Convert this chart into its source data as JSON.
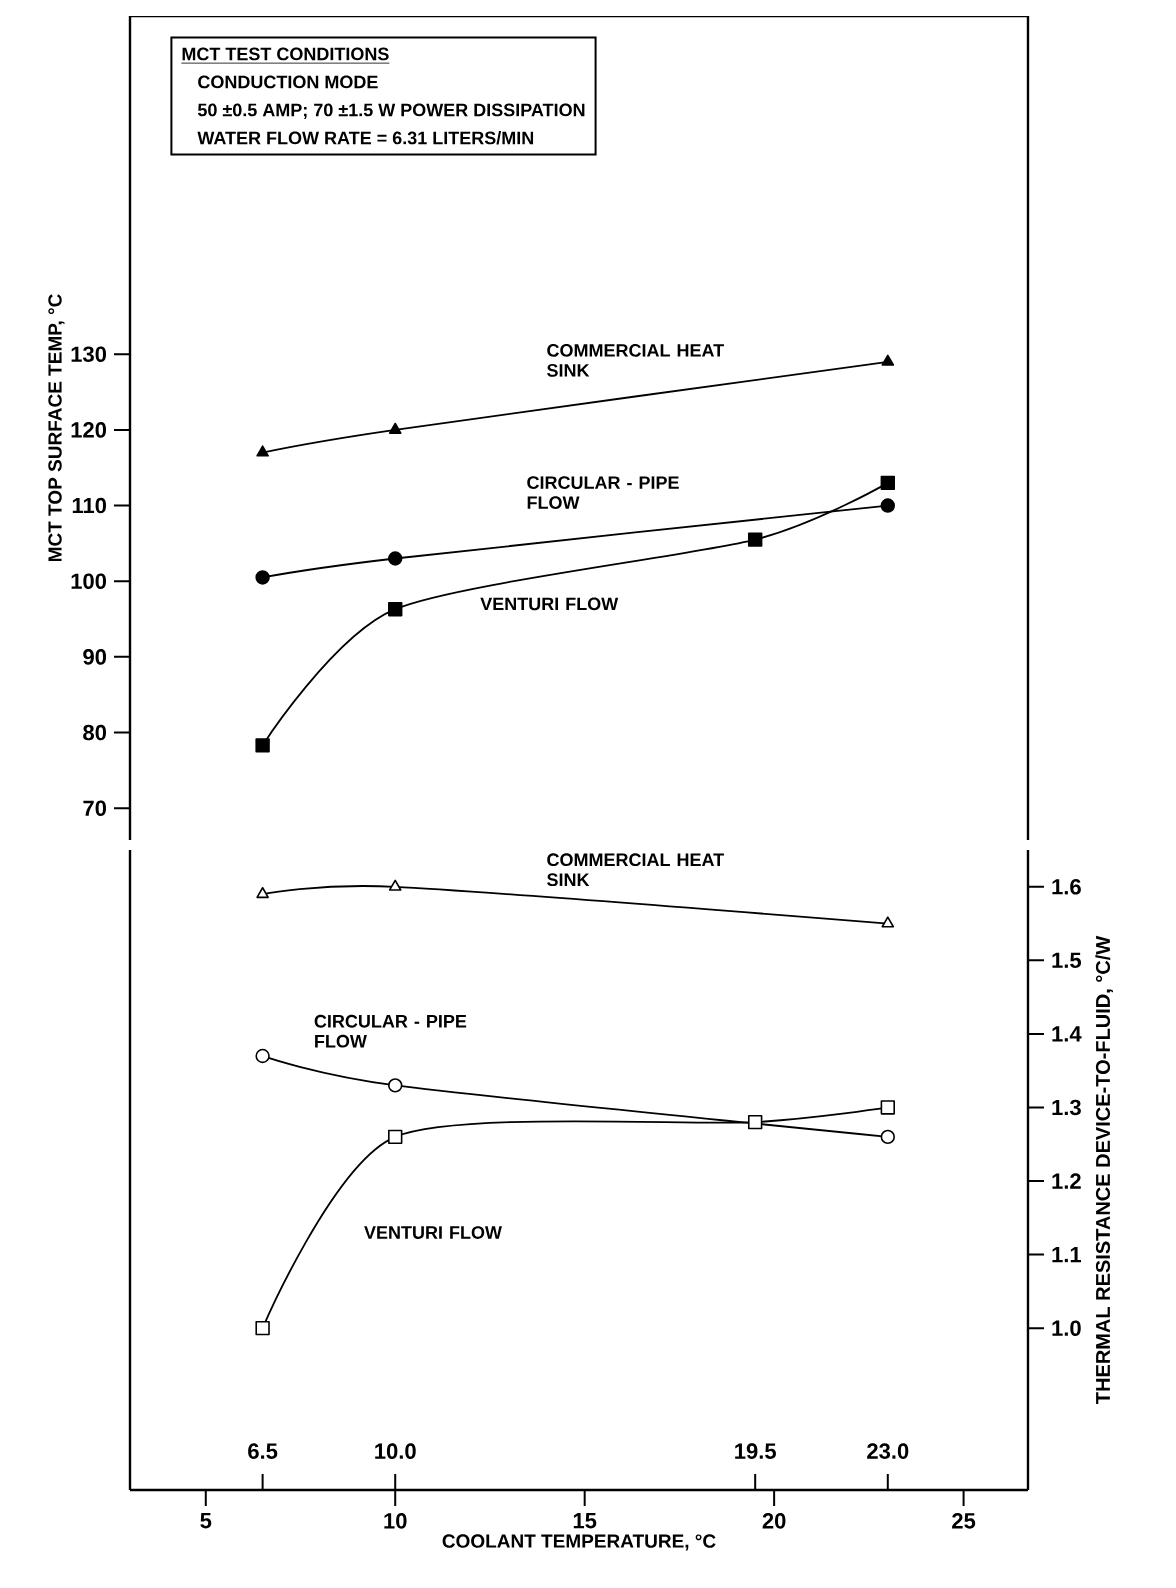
{
  "chart_data": [
    {
      "type": "line",
      "ylabel": "MCT TOP SURFACE TEMP, °C",
      "annotations": [
        "MCT TEST CONDITIONS",
        "CONDUCTION MODE",
        "50 ±0.5 AMP;  70 ±1.5 W POWER DISSIPATION",
        "WATER FLOW RATE = 6.31 LITERS/MIN"
      ],
      "xlim": [
        3,
        26.7
      ],
      "ylim": [
        65.8,
        174.7
      ],
      "yticks": [
        70,
        80,
        90,
        100,
        110,
        120,
        130
      ],
      "tick_labels": "y",
      "grid": false,
      "line_style": "solid",
      "series": [
        {
          "name": "COMMERCIAL HEAT SINK",
          "color": "#000000",
          "marker": "triangle",
          "x": [
            6.5,
            10,
            23
          ],
          "values": [
            117,
            120,
            129
          ]
        },
        {
          "name": "CIRCULAR - PIPE FLOW",
          "color": "#000000",
          "marker": "circle",
          "x": [
            6.5,
            10,
            23
          ],
          "values": [
            100.5,
            103,
            110
          ]
        },
        {
          "name": "VENTURI FLOW",
          "color": "#000000",
          "marker": "square",
          "x": [
            6.5,
            10,
            19.5,
            23
          ],
          "values": [
            78.3,
            96.3,
            105.5,
            113
          ]
        }
      ]
    },
    {
      "type": "line",
      "xlabel": "COOLANT TEMPERATURE, °C",
      "y2label": "THERMAL RESISTANCE DEVICE-TO-FLUID, °C/W",
      "xlim": [
        3,
        26.7
      ],
      "xticks": [
        5,
        10,
        15,
        20,
        25
      ],
      "x2lim": [
        3,
        26.7
      ],
      "x2ticks": [
        6.5,
        {
          "value": 10,
          "label": "10.0"
        },
        19.5,
        {
          "value": 23,
          "label": "23.0"
        }
      ],
      "y2lim": [
        0.78,
        1.65
      ],
      "y2ticks": [
        {
          "value": 1.0,
          "label": "1.0"
        },
        1.1,
        1.2,
        1.3,
        1.4,
        1.5,
        1.6
      ],
      "grid": false,
      "line_style": "solid",
      "series": [
        {
          "name": "COMMERCIAL HEAT SINK",
          "color": "#000000",
          "marker": "triangle",
          "axis": "y2",
          "x": [
            6.5,
            10,
            23
          ],
          "values": [
            1.59,
            1.6,
            1.55
          ]
        },
        {
          "name": "CIRCULAR - PIPE FLOW",
          "color": "#000000",
          "marker": "circle",
          "axis": "y2",
          "x": [
            6.5,
            10,
            23
          ],
          "values": [
            1.37,
            1.33,
            1.26
          ]
        },
        {
          "name": "VENTURI FLOW",
          "color": "#000000",
          "marker": "square",
          "axis": "y2",
          "x": [
            6.5,
            10,
            19.5,
            23
          ],
          "values": [
            1.0,
            1.26,
            1.28,
            1.3
          ]
        }
      ]
    }
  ]
}
